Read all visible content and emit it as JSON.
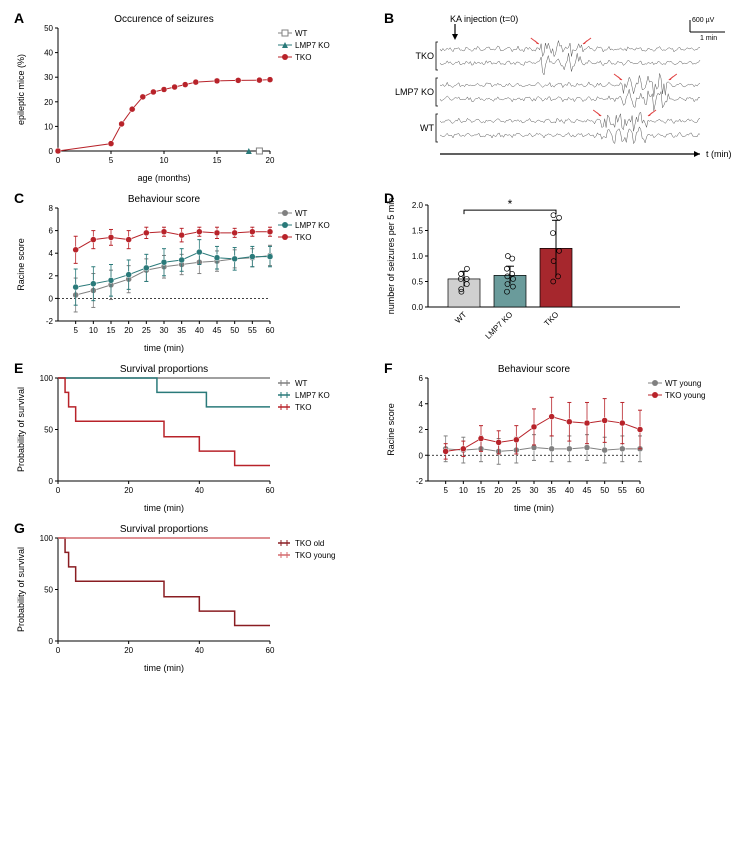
{
  "panelA": {
    "label": "A",
    "title": "Occurence of seizures",
    "xlabel": "age (months)",
    "ylabel": "epileptic mice (%)",
    "xlim": [
      0,
      20
    ],
    "xtick_step": 5,
    "ylim": [
      0,
      50
    ],
    "ytick_step": 10,
    "series": [
      {
        "name": "WT",
        "color": "#808080",
        "marker": "square",
        "x": [
          19
        ],
        "y": [
          0
        ]
      },
      {
        "name": "LMP7 KO",
        "color": "#2a7a7a",
        "marker": "triangle",
        "x": [
          18
        ],
        "y": [
          0
        ]
      },
      {
        "name": "TKO",
        "color": "#b8232a",
        "marker": "circle",
        "x": [
          0,
          5,
          6,
          7,
          8,
          9,
          10,
          11,
          12,
          13,
          15,
          17,
          19,
          20
        ],
        "y": [
          0,
          3,
          11,
          17,
          22,
          24,
          25,
          26,
          27,
          28,
          28.5,
          28.7,
          28.8,
          29
        ]
      }
    ]
  },
  "panelB": {
    "label": "B",
    "injection_label": "KA injection (t=0)",
    "scale_y": "600 µV",
    "scale_x": "1 min",
    "rows": [
      "TKO",
      "LMP7 KO",
      "WT"
    ],
    "x_axis_label": "t (min)",
    "arrow_color": "#e04040"
  },
  "panelC": {
    "label": "C",
    "title": "Behaviour score",
    "xlabel": "time (min)",
    "ylabel": "Racine score",
    "xlim": [
      0,
      60
    ],
    "xticks": [
      5,
      10,
      15,
      20,
      25,
      30,
      35,
      40,
      45,
      50,
      55,
      60
    ],
    "ylim": [
      -2,
      8
    ],
    "ytick_step": 2,
    "series": [
      {
        "name": "WT",
        "color": "#808080",
        "x": [
          5,
          10,
          15,
          20,
          25,
          30,
          35,
          40,
          45,
          50,
          55,
          60
        ],
        "y": [
          0.3,
          0.7,
          1.2,
          1.7,
          2.5,
          2.8,
          3.0,
          3.2,
          3.3,
          3.5,
          3.6,
          3.8
        ],
        "err": [
          1.5,
          1.5,
          1.3,
          1.2,
          1.0,
          1.0,
          0.9,
          1.0,
          0.9,
          0.8,
          0.8,
          0.9
        ]
      },
      {
        "name": "LMP7 KO",
        "color": "#2a7a7a",
        "x": [
          5,
          10,
          15,
          20,
          25,
          30,
          35,
          40,
          45,
          50,
          55,
          60
        ],
        "y": [
          1.0,
          1.3,
          1.6,
          2.1,
          2.7,
          3.2,
          3.4,
          4.1,
          3.6,
          3.5,
          3.7,
          3.7
        ],
        "err": [
          1.6,
          1.5,
          1.4,
          1.3,
          1.2,
          1.2,
          1.0,
          1.1,
          1.0,
          1.0,
          0.9,
          0.9
        ]
      },
      {
        "name": "TKO",
        "color": "#b8232a",
        "x": [
          5,
          10,
          15,
          20,
          25,
          30,
          35,
          40,
          45,
          50,
          55,
          60
        ],
        "y": [
          4.3,
          5.2,
          5.4,
          5.2,
          5.8,
          5.9,
          5.6,
          5.9,
          5.8,
          5.8,
          5.9,
          5.9
        ],
        "err": [
          1.2,
          0.8,
          0.7,
          0.8,
          0.5,
          0.4,
          0.6,
          0.4,
          0.5,
          0.4,
          0.4,
          0.4
        ]
      }
    ]
  },
  "panelD": {
    "label": "D",
    "ylabel": "number of seizures per 5 min",
    "ylim": [
      0.0,
      2.0
    ],
    "ytick_step": 0.5,
    "sig_label": "*",
    "bars": [
      {
        "name": "WT",
        "color": "#d0d0d0",
        "mean": 0.55,
        "err": 0.15,
        "points": [
          0.35,
          0.45,
          0.55,
          0.55,
          0.65,
          0.75,
          0.3
        ]
      },
      {
        "name": "LMP7 KO",
        "color": "#6a9b9b",
        "mean": 0.62,
        "err": 0.18,
        "points": [
          0.3,
          0.4,
          0.45,
          0.55,
          0.6,
          0.65,
          0.75,
          0.95,
          1.0
        ]
      },
      {
        "name": "TKO",
        "color": "#a6272d",
        "mean": 1.15,
        "err": 0.55,
        "points": [
          0.5,
          0.6,
          0.9,
          1.1,
          1.45,
          1.75,
          1.8
        ]
      }
    ]
  },
  "panelE": {
    "label": "E",
    "title": "Survival proportions",
    "xlabel": "time (min)",
    "ylabel": "Probability of survival",
    "xlim": [
      0,
      60
    ],
    "xtick_step": 20,
    "ylim": [
      0,
      100
    ],
    "ytick_step": 50,
    "series": [
      {
        "name": "WT",
        "color": "#808080",
        "x": [
          0,
          60
        ],
        "y": [
          100,
          100
        ]
      },
      {
        "name": "LMP7 KO",
        "color": "#2a7a7a",
        "x": [
          0,
          28,
          28,
          42,
          42,
          60
        ],
        "y": [
          100,
          100,
          86,
          86,
          72,
          72
        ]
      },
      {
        "name": "TKO",
        "color": "#b8232a",
        "x": [
          0,
          2,
          2,
          3,
          3,
          5,
          5,
          30,
          30,
          40,
          40,
          50,
          50,
          56,
          56,
          60
        ],
        "y": [
          100,
          100,
          86,
          86,
          72,
          72,
          58,
          58,
          43,
          43,
          29,
          29,
          15,
          15,
          15,
          15
        ]
      }
    ]
  },
  "panelF": {
    "label": "F",
    "title": "Behaviour score",
    "xlabel": "time (min)",
    "ylabel": "Racine score",
    "xlim": [
      0,
      60
    ],
    "xticks": [
      5,
      10,
      15,
      20,
      25,
      30,
      35,
      40,
      45,
      50,
      55,
      60
    ],
    "ylim": [
      -2,
      6
    ],
    "ytick_step": 2,
    "series": [
      {
        "name": "WT young",
        "color": "#808080",
        "x": [
          5,
          10,
          15,
          20,
          25,
          30,
          35,
          40,
          45,
          50,
          55,
          60
        ],
        "y": [
          0.5,
          0.4,
          0.5,
          0.3,
          0.4,
          0.6,
          0.5,
          0.5,
          0.6,
          0.4,
          0.5,
          0.5
        ],
        "err": [
          1.0,
          1.0,
          1.0,
          1.0,
          1.0,
          1.0,
          1.0,
          1.0,
          1.0,
          1.0,
          1.0,
          1.0
        ]
      },
      {
        "name": "TKO young",
        "color": "#b8232a",
        "x": [
          5,
          10,
          15,
          20,
          25,
          30,
          35,
          40,
          45,
          50,
          55,
          60
        ],
        "y": [
          0.3,
          0.5,
          1.3,
          1.0,
          1.2,
          2.2,
          3.0,
          2.6,
          2.5,
          2.7,
          2.5,
          2.0
        ],
        "err": [
          0.6,
          0.6,
          1.0,
          0.9,
          1.1,
          1.4,
          1.5,
          1.5,
          1.6,
          1.7,
          1.6,
          1.5
        ]
      }
    ]
  },
  "panelG": {
    "label": "G",
    "title": "Survival proportions",
    "xlabel": "time (min)",
    "ylabel": "Probability of survival",
    "xlim": [
      0,
      60
    ],
    "xtick_step": 20,
    "ylim": [
      0,
      100
    ],
    "ytick_step": 50,
    "series": [
      {
        "name": "TKO old",
        "color": "#8a1d22",
        "x": [
          0,
          2,
          2,
          3,
          3,
          5,
          5,
          30,
          30,
          40,
          40,
          50,
          50,
          56,
          56,
          60
        ],
        "y": [
          100,
          100,
          86,
          86,
          72,
          72,
          58,
          58,
          43,
          43,
          29,
          29,
          15,
          15,
          15,
          15
        ]
      },
      {
        "name": "TKO young",
        "color": "#d46a6e",
        "x": [
          0,
          60
        ],
        "y": [
          100,
          100
        ]
      }
    ]
  }
}
